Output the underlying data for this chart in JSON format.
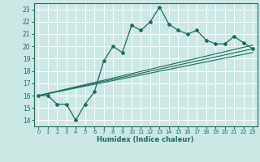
{
  "xlabel": "Humidex (Indice chaleur)",
  "bg_color": "#cce8e5",
  "line_color": "#1a6b60",
  "grid_color": "#ffffff",
  "xlim": [
    -0.5,
    23.5
  ],
  "ylim": [
    13.5,
    23.5
  ],
  "yticks": [
    14,
    15,
    16,
    17,
    18,
    19,
    20,
    21,
    22,
    23
  ],
  "xticks": [
    0,
    1,
    2,
    3,
    4,
    5,
    6,
    7,
    8,
    9,
    10,
    11,
    12,
    13,
    14,
    15,
    16,
    17,
    18,
    19,
    20,
    21,
    22,
    23
  ],
  "curve_x": [
    0,
    1,
    2,
    3,
    4,
    5,
    6,
    7,
    8,
    9,
    10,
    11,
    12,
    13,
    14,
    15,
    16,
    17,
    18,
    19,
    20,
    21,
    22,
    23
  ],
  "curve_y": [
    16.0,
    16.0,
    15.3,
    15.3,
    14.0,
    15.3,
    16.3,
    18.8,
    20.0,
    19.5,
    21.7,
    21.3,
    22.0,
    23.2,
    21.8,
    21.3,
    21.0,
    21.3,
    20.5,
    20.2,
    20.2,
    20.8,
    20.3,
    19.8
  ],
  "line1_x": [
    0,
    23
  ],
  "line1_y": [
    16.0,
    20.1
  ],
  "line2_x": [
    0,
    23
  ],
  "line2_y": [
    16.0,
    19.8
  ],
  "line3_x": [
    0,
    23
  ],
  "line3_y": [
    16.0,
    19.5
  ]
}
